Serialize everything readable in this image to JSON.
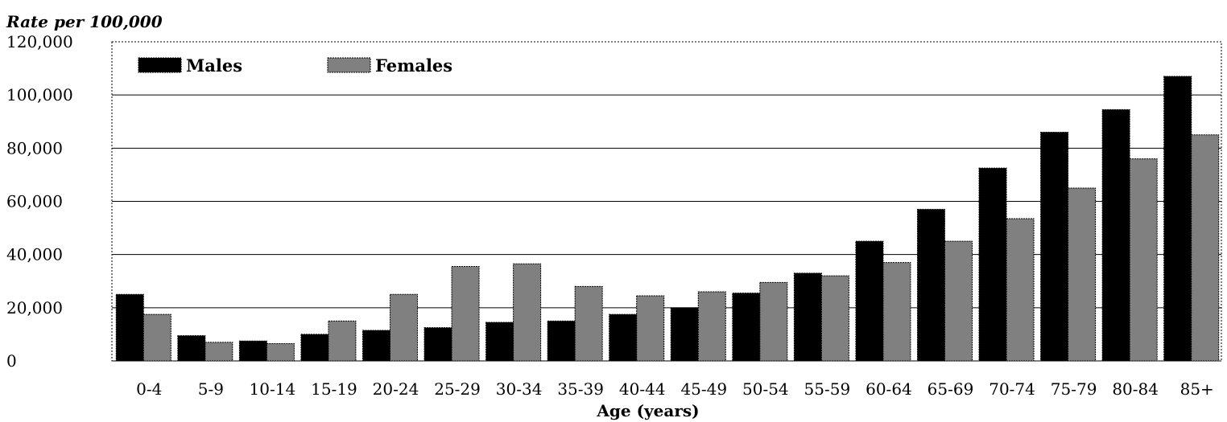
{
  "chart_data": {
    "type": "bar",
    "title": "Rate per 100,000",
    "xlabel": "Age (years)",
    "ylabel": "",
    "ylim": [
      0,
      120000
    ],
    "yticks": [
      0,
      20000,
      40000,
      60000,
      80000,
      100000,
      120000
    ],
    "ytick_labels": [
      "0",
      "20,000",
      "40,000",
      "60,000",
      "80,000",
      "100,000",
      "120,000"
    ],
    "grid": true,
    "legend_position": "top-left",
    "categories": [
      "0-4",
      "5-9",
      "10-14",
      "15-19",
      "20-24",
      "25-29",
      "30-34",
      "35-39",
      "40-44",
      "45-49",
      "50-54",
      "55-59",
      "60-64",
      "65-69",
      "70-74",
      "75-79",
      "80-84",
      "85+"
    ],
    "series": [
      {
        "name": "Males",
        "color": "#000000",
        "values": [
          25000,
          9500,
          7500,
          10000,
          11500,
          12500,
          14500,
          15000,
          17500,
          20000,
          25500,
          33000,
          45000,
          57000,
          72500,
          86000,
          94500,
          107000
        ]
      },
      {
        "name": "Females",
        "color": "#808080",
        "values": [
          17500,
          7000,
          6500,
          15000,
          25000,
          35500,
          36500,
          28000,
          24500,
          26000,
          29500,
          32000,
          37000,
          45000,
          53500,
          65000,
          76000,
          85000
        ]
      }
    ]
  }
}
